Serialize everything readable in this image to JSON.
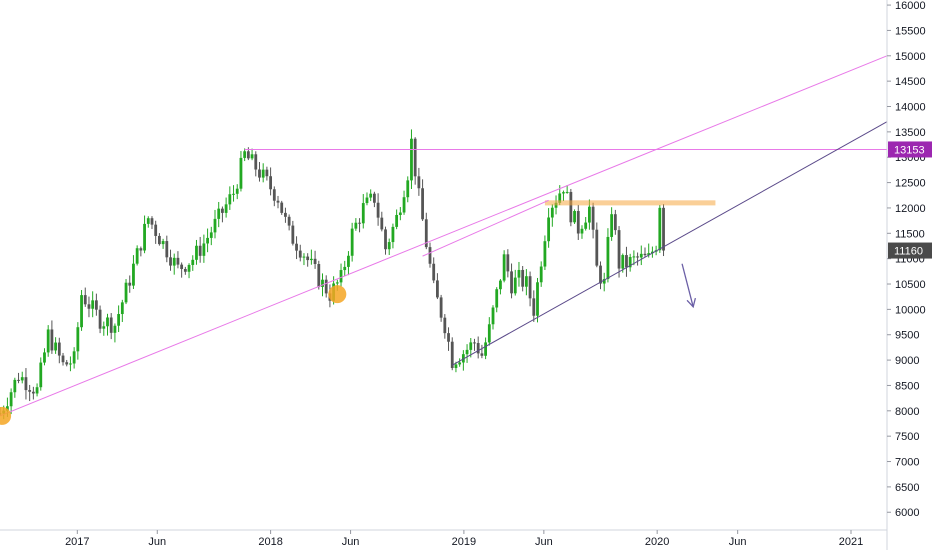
{
  "chart_data": {
    "type": "candlestick",
    "colors": {
      "up": "#22a822",
      "down": "#555555",
      "trendline_pink": "#e879e8",
      "support_line": "#5b4a8a",
      "resistance_zone": "#f5a742",
      "circle_marker": "#f5a623",
      "arrow": "#6b5fa6",
      "axis_text": "#131722",
      "badge_purple": "#9c27b0",
      "badge_gray": "#4a4a4a"
    },
    "y_axis": {
      "range": [
        5650,
        16100
      ],
      "ticks": [
        6000,
        6500,
        7000,
        7500,
        8000,
        8500,
        9000,
        9500,
        10000,
        10500,
        11000,
        11500,
        12000,
        12500,
        13000,
        13500,
        14000,
        14500,
        15000,
        15500,
        16000
      ],
      "position": "right"
    },
    "x_axis": {
      "range": [
        "2016-08-08",
        "2021-03-10"
      ],
      "tick_labels": [
        {
          "date": "2017-01-01",
          "label": "2017"
        },
        {
          "date": "2017-06-01",
          "label": "Jun"
        },
        {
          "date": "2018-01-01",
          "label": "2018"
        },
        {
          "date": "2018-06-01",
          "label": "Jun"
        },
        {
          "date": "2019-01-01",
          "label": "2019"
        },
        {
          "date": "2019-06-01",
          "label": "Jun"
        },
        {
          "date": "2020-01-01",
          "label": "2020"
        },
        {
          "date": "2020-06-01",
          "label": "Jun"
        },
        {
          "date": "2021-01-01",
          "label": "2021"
        }
      ]
    },
    "price_path": [
      [
        "2016-08-08",
        7950
      ],
      [
        "2016-09-12",
        8700
      ],
      [
        "2016-10-17",
        8400
      ],
      [
        "2016-11-07",
        9500
      ],
      [
        "2016-12-05",
        8900
      ],
      [
        "2016-12-26",
        9000
      ],
      [
        "2017-01-09",
        10300
      ],
      [
        "2017-02-13",
        9800
      ],
      [
        "2017-03-13",
        9700
      ],
      [
        "2017-04-10",
        10600
      ],
      [
        "2017-05-15",
        11800
      ],
      [
        "2017-06-12",
        11300
      ],
      [
        "2017-07-10",
        10800
      ],
      [
        "2017-08-07",
        11000
      ],
      [
        "2017-08-28",
        11300
      ],
      [
        "2017-09-25",
        11800
      ],
      [
        "2017-10-23",
        12300
      ],
      [
        "2017-11-13",
        13050
      ],
      [
        "2017-12-04",
        12800
      ],
      [
        "2017-12-25",
        12500
      ],
      [
        "2018-01-15",
        12200
      ],
      [
        "2018-02-05",
        11500
      ],
      [
        "2018-03-05",
        11100
      ],
      [
        "2018-04-02",
        10600
      ],
      [
        "2018-04-23",
        10300
      ],
      [
        "2018-05-14",
        10600
      ],
      [
        "2018-06-04",
        11500
      ],
      [
        "2018-06-25",
        12000
      ],
      [
        "2018-07-16",
        12200
      ],
      [
        "2018-08-06",
        11200
      ],
      [
        "2018-08-27",
        11800
      ],
      [
        "2018-09-17",
        12700
      ],
      [
        "2018-09-24",
        13300
      ],
      [
        "2018-10-08",
        12200
      ],
      [
        "2018-10-22",
        11300
      ],
      [
        "2018-11-05",
        10400
      ],
      [
        "2018-11-26",
        9700
      ],
      [
        "2018-12-10",
        9000
      ],
      [
        "2018-12-31",
        9150
      ],
      [
        "2019-01-21",
        9350
      ],
      [
        "2019-02-04",
        9100
      ],
      [
        "2019-02-18",
        9600
      ],
      [
        "2019-03-04",
        10300
      ],
      [
        "2019-03-18",
        11000
      ],
      [
        "2019-04-01",
        10500
      ],
      [
        "2019-04-15",
        10600
      ],
      [
        "2019-04-29",
        10500
      ],
      [
        "2019-05-13",
        10000
      ],
      [
        "2019-05-27",
        11000
      ],
      [
        "2019-06-10",
        12000
      ],
      [
        "2019-06-24",
        12200
      ],
      [
        "2019-07-08",
        12450
      ],
      [
        "2019-07-22",
        11900
      ],
      [
        "2019-08-05",
        11600
      ],
      [
        "2019-08-26",
        12000
      ],
      [
        "2019-09-09",
        10800
      ],
      [
        "2019-09-23",
        10500
      ],
      [
        "2019-10-07",
        12000
      ],
      [
        "2019-10-21",
        10900
      ],
      [
        "2019-11-04",
        10900
      ],
      [
        "2019-11-25",
        11000
      ],
      [
        "2019-12-16",
        11000
      ],
      [
        "2019-12-30",
        11300
      ],
      [
        "2020-01-06",
        12100
      ],
      [
        "2020-01-13",
        11160
      ]
    ],
    "overlays": {
      "horizontal_level": 13153,
      "pink_trendline": {
        "from": [
          "2016-08-08",
          7900
        ],
        "to": [
          "2021-03-10",
          15000
        ]
      },
      "support_trendline": {
        "from": [
          "2018-12-10",
          8900
        ],
        "to": [
          "2021-03-10",
          13700
        ]
      },
      "upper_pink_segment": {
        "from": [
          "2018-10-15",
          11050
        ],
        "to": [
          "2019-06-10",
          12150
        ]
      },
      "resistance_zone": {
        "from": "2019-06-03",
        "to": "2020-04-20",
        "low": 12050,
        "high": 12150
      },
      "circles": [
        {
          "date": "2016-08-12",
          "value": 7900
        },
        {
          "date": "2018-05-07",
          "value": 10300
        }
      ],
      "arrow": {
        "from": [
          "2020-02-17",
          10900
        ],
        "to": [
          "2020-03-09",
          10050
        ]
      }
    },
    "price_badges": [
      {
        "value": 13153,
        "label": "13153"
      },
      {
        "value": 11160,
        "label": "11160"
      }
    ]
  }
}
